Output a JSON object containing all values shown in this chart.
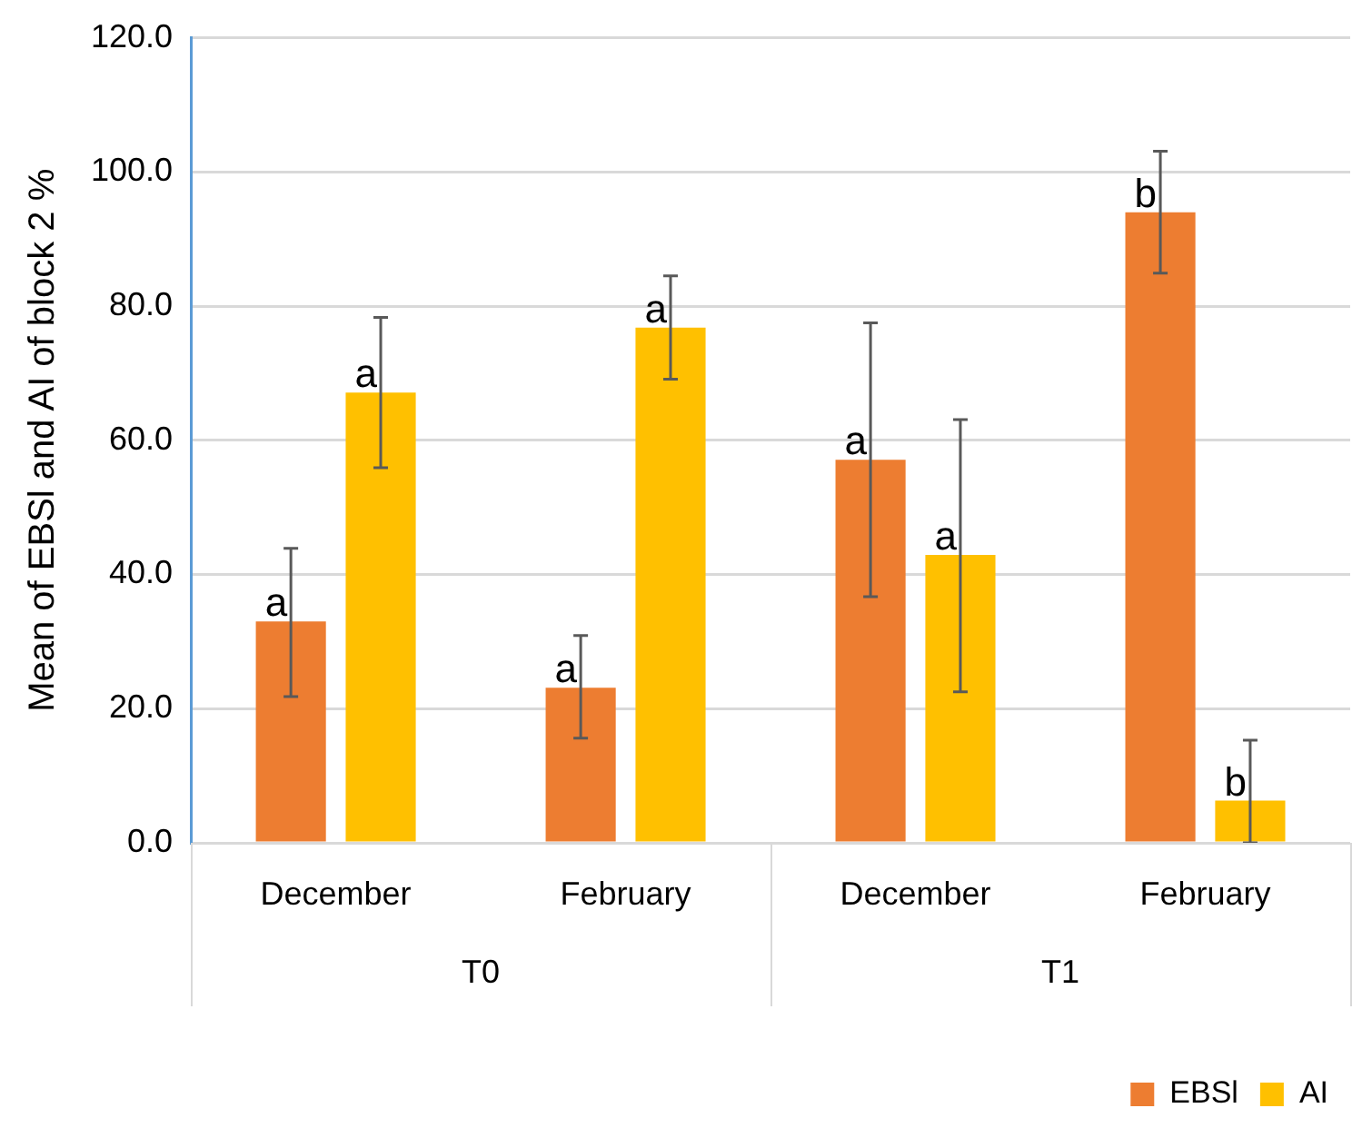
{
  "chart_data": {
    "type": "bar",
    "ylabel": "Mean of EBSl and AI of block 2 %",
    "categories": [
      "December",
      "February",
      "December",
      "February"
    ],
    "series": [
      {
        "name": "EBSl",
        "color": "#ed7d31",
        "values": [
          33,
          23.1,
          57.1,
          94
        ],
        "errors": [
          [
            21.8,
            43.9
          ],
          [
            15.6,
            30.9
          ],
          [
            36.7,
            77.5
          ],
          [
            84.9,
            103.1
          ]
        ],
        "value_labels": [
          "a",
          "a",
          "a",
          "b"
        ]
      },
      {
        "name": "AI",
        "color": "#ffc000",
        "values": [
          67.1,
          76.8,
          42.9,
          6.3
        ],
        "errors": [
          [
            55.9,
            78.3
          ],
          [
            69.1,
            84.5
          ],
          [
            22.5,
            63.1
          ],
          [
            0,
            15.3
          ]
        ],
        "value_labels": [
          "a",
          "a",
          "a",
          "b"
        ]
      }
    ],
    "ylim": [
      0,
      120
    ],
    "yticks": [
      {
        "value": 0,
        "label": "0.0"
      },
      {
        "value": 20,
        "label": "20.0"
      },
      {
        "value": 40,
        "label": "40.0"
      },
      {
        "value": 60,
        "label": "60.0"
      },
      {
        "value": 80,
        "label": "80.0"
      },
      {
        "value": 100,
        "label": "100.0"
      },
      {
        "value": 120,
        "label": "120.0"
      }
    ],
    "grid": "y",
    "legend": "bottom right",
    "annotations": [
      "T0",
      "T1"
    ]
  }
}
